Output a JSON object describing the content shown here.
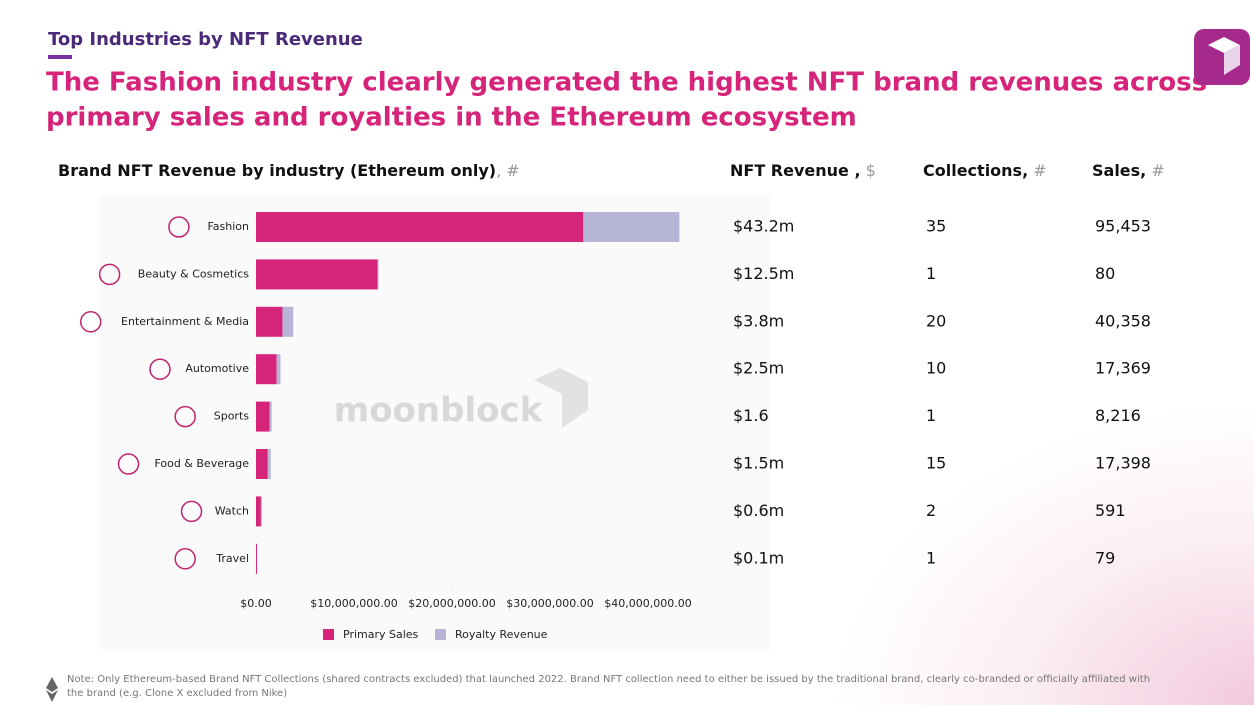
{
  "header": {
    "kicker": "Top Industries by NFT Revenue",
    "title_lines": [
      "The Fashion industry clearly generated the highest NFT brand revenues across",
      "primary sales and royalties in the Ethereum ecosystem"
    ]
  },
  "chart_data": {
    "type": "bar",
    "horizontal": true,
    "stacked": true,
    "title": "Brand NFT Revenue by industry (Ethereum only)",
    "title_unit": ", #",
    "categories": [
      "Fashion",
      "Beauty & Cosmetics",
      "Entertainment & Media",
      "Automotive",
      "Sports",
      "Food & Beverage",
      "Watch",
      "Travel"
    ],
    "series": [
      {
        "name": "Primary Sales",
        "color": "#d6247a",
        "values": [
          33400000,
          12400000,
          2700000,
          2100000,
          1400000,
          1200000,
          500000,
          100000
        ]
      },
      {
        "name": "Royalty Revenue",
        "color": "#b7b5d6",
        "values": [
          9800000,
          100000,
          1100000,
          400000,
          200000,
          300000,
          100000,
          0
        ]
      }
    ],
    "xlim": [
      0,
      45000000
    ],
    "xticks": [
      {
        "value": 0,
        "label": "$0.00"
      },
      {
        "value": 10000000,
        "label": "$10,000,000.00"
      },
      {
        "value": 20000000,
        "label": "$20,000,000.00"
      },
      {
        "value": 30000000,
        "label": "$30,000,000.00"
      },
      {
        "value": 40000000,
        "label": "$40,000,000.00"
      }
    ],
    "legend": "bottom",
    "grid": false,
    "watermark": "moonblock"
  },
  "table": {
    "headers": [
      {
        "label": "NFT Revenue ,",
        "unit": "$"
      },
      {
        "label": "Collections,",
        "unit": "#"
      },
      {
        "label": "Sales,",
        "unit": "#"
      }
    ],
    "rows": [
      [
        "$43.2m",
        "35",
        "95,453"
      ],
      [
        "$12.5m",
        "1",
        "80"
      ],
      [
        "$3.8m",
        "20",
        "40,358"
      ],
      [
        "$2.5m",
        "10",
        "17,369"
      ],
      [
        "$1.6",
        "1",
        "8,216"
      ],
      [
        "$1.5m",
        "15",
        "17,398"
      ],
      [
        "$0.6m",
        "2",
        "591"
      ],
      [
        "$0.1m",
        "1",
        "79"
      ]
    ]
  },
  "footnote": [
    "Note: Only Ethereum-based Brand NFT Collections (shared contracts excluded) that launched 2022. Brand NFT collection need to either be issued by the traditional brand, clearly co-branded or officially affiliated with",
    "the brand (e.g. Clone X excluded from Nike)"
  ]
}
